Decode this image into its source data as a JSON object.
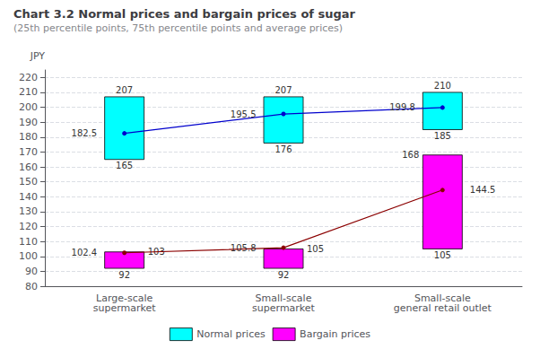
{
  "chart_data": {
    "type": "range_bar",
    "title": "Chart 3.2 Normal prices and bargain prices of sugar",
    "subtitle": "(25th percentile points, 75th percentile points and average prices)",
    "ylabel": "JPY",
    "categories": [
      "Large-scale\nsupermarket",
      "Small-scale\nsupermarket",
      "Small-scale\ngeneral retail outlet"
    ],
    "ylim": [
      80,
      225
    ],
    "yticks": [
      80,
      90,
      100,
      110,
      120,
      130,
      140,
      150,
      160,
      170,
      180,
      190,
      200,
      210,
      220
    ],
    "grid": true,
    "legend": "bottom",
    "data_labels": true,
    "series": [
      {
        "name": "Normal prices",
        "type": "range_bar",
        "color": "#00FFFF",
        "low": [
          165,
          176,
          185
        ],
        "high": [
          207,
          207,
          210
        ]
      },
      {
        "name": "Bargain prices",
        "type": "range_bar",
        "color": "#FF00FF",
        "low": [
          92,
          92,
          105
        ],
        "high": [
          103,
          105,
          168
        ]
      },
      {
        "type": "line",
        "color": "#0000CD",
        "marker": "circle",
        "values": [
          182.5,
          195.5,
          199.8
        ]
      },
      {
        "type": "line",
        "color": "#8B0000",
        "marker": "circle",
        "values": [
          102.4,
          105.8,
          144.5
        ]
      }
    ]
  }
}
